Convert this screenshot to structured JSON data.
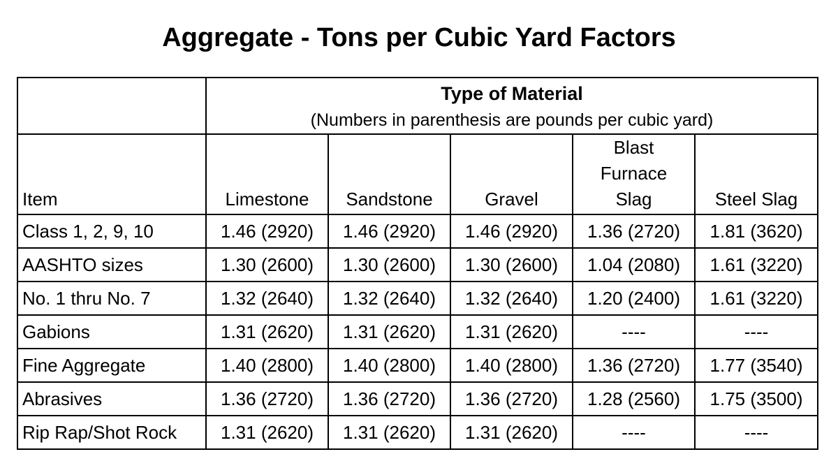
{
  "title": "Aggregate - Tons per Cubic Yard Factors",
  "group_header": {
    "title": "Type of Material",
    "subtitle": "(Numbers in parenthesis are pounds per cubic yard)"
  },
  "columns": {
    "item": "Item",
    "limestone": "Limestone",
    "sandstone": "Sandstone",
    "gravel": "Gravel",
    "blast_furnace_slag": [
      "Blast",
      "Furnace",
      "Slag"
    ],
    "steel_slag": "Steel Slag"
  },
  "rows": [
    {
      "item": "Class 1, 2, 9, 10",
      "values": [
        "1.46 (2920)",
        "1.46 (2920)",
        "1.46 (2920)",
        "1.36 (2720)",
        "1.81 (3620)"
      ]
    },
    {
      "item": "AASHTO sizes",
      "values": [
        "1.30 (2600)",
        "1.30 (2600)",
        "1.30 (2600)",
        "1.04 (2080)",
        "1.61 (3220)"
      ]
    },
    {
      "item": "No. 1 thru No. 7",
      "values": [
        "1.32 (2640)",
        "1.32 (2640)",
        "1.32 (2640)",
        "1.20 (2400)",
        "1.61 (3220)"
      ]
    },
    {
      "item": "Gabions",
      "values": [
        "1.31 (2620)",
        "1.31 (2620)",
        "1.31 (2620)",
        "----",
        "----"
      ]
    },
    {
      "item": "Fine Aggregate",
      "values": [
        "1.40 (2800)",
        "1.40 (2800)",
        "1.40 (2800)",
        "1.36 (2720)",
        "1.77 (3540)"
      ]
    },
    {
      "item": "Abrasives",
      "values": [
        "1.36 (2720)",
        "1.36 (2720)",
        "1.36 (2720)",
        "1.28 (2560)",
        "1.75 (3500)"
      ]
    },
    {
      "item": "Rip Rap/Shot Rock",
      "values": [
        "1.31 (2620)",
        "1.31 (2620)",
        "1.31 (2620)",
        "----",
        "----"
      ]
    }
  ]
}
